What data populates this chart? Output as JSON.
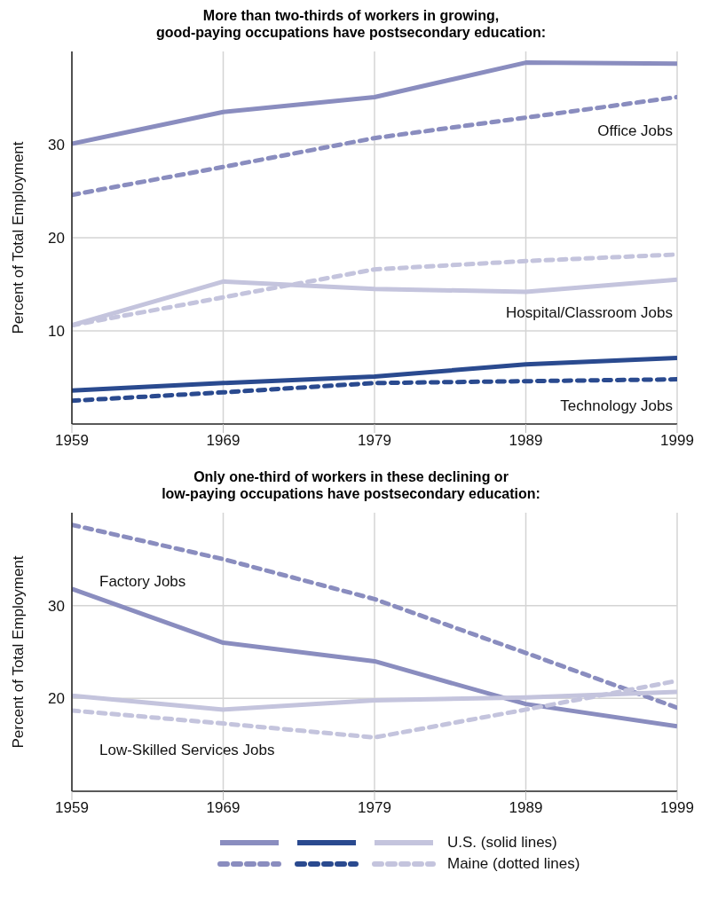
{
  "chart_data": [
    {
      "type": "line",
      "title": "More than two-thirds of workers in growing,\ngood-paying occupations have postsecondary education:",
      "ylabel": "Percent of Total Employment",
      "x": [
        1959,
        1969,
        1979,
        1989,
        1999
      ],
      "xlim": [
        1959,
        1999
      ],
      "xticks": [
        1959,
        1969,
        1979,
        1989,
        1999
      ],
      "ylim": [
        0,
        40
      ],
      "yticks": [
        10,
        20,
        30
      ],
      "grid": true,
      "annotations": [
        "Office Jobs",
        "Hospital/Classroom Jobs",
        "Technology Jobs"
      ],
      "series": [
        {
          "color": "#8a8dbf",
          "line_style": "solid",
          "values": [
            30.1,
            33.5,
            35.1,
            38.8,
            38.7
          ]
        },
        {
          "color": "#8a8dbf",
          "line_style": "dashed",
          "values": [
            24.6,
            27.6,
            30.7,
            32.9,
            35.1
          ]
        },
        {
          "color": "#c4c4dd",
          "line_style": "solid",
          "values": [
            10.6,
            15.3,
            14.5,
            14.2,
            15.5
          ]
        },
        {
          "color": "#c4c4dd",
          "line_style": "dashed",
          "values": [
            10.6,
            13.6,
            16.6,
            17.5,
            18.2
          ]
        },
        {
          "color": "#2a4a8f",
          "line_style": "solid",
          "values": [
            3.6,
            4.4,
            5.1,
            6.4,
            7.1
          ]
        },
        {
          "color": "#2a4a8f",
          "line_style": "dashed",
          "values": [
            2.5,
            3.4,
            4.4,
            4.6,
            4.8
          ]
        }
      ]
    },
    {
      "type": "line",
      "title": "Only one-third of workers in these declining or\nlow-paying occupations have postsecondary education:",
      "ylabel": "Percent of Total Employment",
      "x": [
        1959,
        1969,
        1979,
        1989,
        1999
      ],
      "xlim": [
        1959,
        1999
      ],
      "xticks": [
        1959,
        1969,
        1979,
        1989,
        1999
      ],
      "ylim": [
        10,
        40
      ],
      "yticks": [
        20,
        30
      ],
      "grid": true,
      "annotations": [
        "Factory Jobs",
        "Low-Skilled Services Jobs",
        "U.S. (solid lines)",
        "Maine (dotted lines)"
      ],
      "series": [
        {
          "color": "#8a8dbf",
          "line_style": "solid",
          "values": [
            31.8,
            26.0,
            24.0,
            19.4,
            17.0
          ]
        },
        {
          "color": "#8a8dbf",
          "line_style": "dashed",
          "values": [
            38.7,
            35.0,
            30.7,
            24.9,
            19.0
          ]
        },
        {
          "color": "#c4c4dd",
          "line_style": "solid",
          "values": [
            20.3,
            18.8,
            19.8,
            20.1,
            20.7
          ]
        },
        {
          "color": "#c4c4dd",
          "line_style": "dashed",
          "values": [
            18.7,
            17.3,
            15.8,
            18.8,
            21.9
          ]
        }
      ]
    }
  ]
}
